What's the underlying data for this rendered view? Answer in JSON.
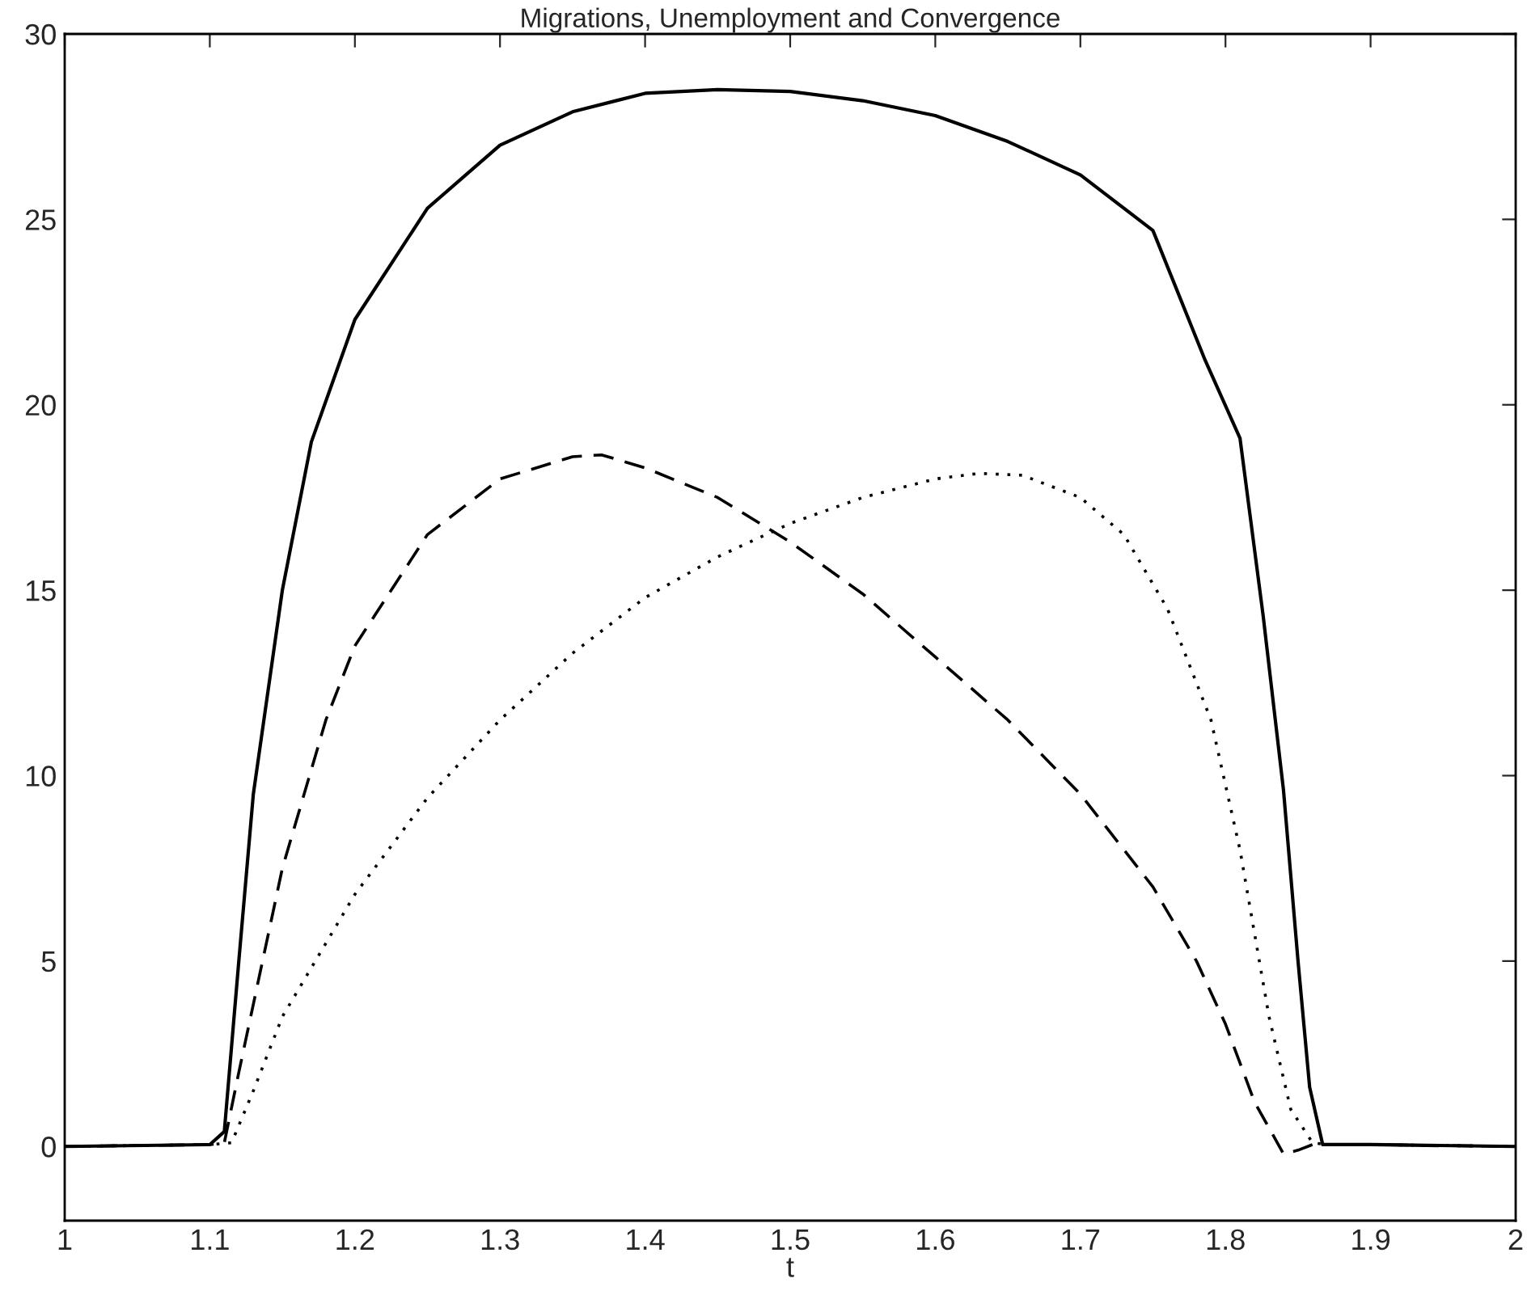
{
  "chart_data": {
    "type": "line",
    "title": "Migrations, Unemployment and Convergence",
    "xlabel": "t",
    "xlim": [
      1,
      2
    ],
    "ylim": [
      -2,
      30
    ],
    "xticks": [
      1,
      1.1,
      1.2,
      1.3,
      1.4,
      1.5,
      1.6,
      1.7,
      1.8,
      1.9,
      2
    ],
    "yticks": [
      0,
      5,
      10,
      15,
      20,
      25,
      30
    ],
    "grid": false,
    "marker": "none",
    "series": [
      {
        "color": "#000000",
        "line_style": "solid",
        "x": [
          1.0,
          1.1,
          1.11,
          1.12,
          1.13,
          1.15,
          1.17,
          1.2,
          1.25,
          1.3,
          1.35,
          1.4,
          1.45,
          1.5,
          1.55,
          1.6,
          1.65,
          1.7,
          1.75,
          1.786,
          1.81,
          1.826,
          1.84,
          1.85,
          1.858,
          1.867,
          1.9,
          2.0
        ],
        "values": [
          0,
          0.05,
          0.4,
          5,
          9.5,
          15,
          19,
          22.3,
          25.3,
          27,
          27.9,
          28.4,
          28.5,
          28.45,
          28.2,
          27.8,
          27.1,
          26.2,
          24.7,
          21.2,
          19.1,
          14.3,
          9.6,
          5,
          1.6,
          0.05,
          0.05,
          0
        ]
      },
      {
        "color": "#000000",
        "line_style": "dashed",
        "x": [
          1.0,
          1.1,
          1.11,
          1.12,
          1.15,
          1.18,
          1.2,
          1.25,
          1.3,
          1.35,
          1.37,
          1.4,
          1.45,
          1.5,
          1.55,
          1.6,
          1.65,
          1.7,
          1.75,
          1.78,
          1.8,
          1.82,
          1.84,
          1.85,
          1.86,
          1.9,
          2.0
        ],
        "values": [
          0,
          0.05,
          0.1,
          2,
          7.5,
          11.5,
          13.5,
          16.5,
          18,
          18.6,
          18.65,
          18.3,
          17.5,
          16.3,
          14.9,
          13.2,
          11.5,
          9.5,
          7,
          5,
          3.3,
          1.2,
          -0.2,
          -0.1,
          0.05,
          0.05,
          0
        ]
      },
      {
        "color": "#000000",
        "line_style": "dotted",
        "x": [
          1.0,
          1.1,
          1.115,
          1.13,
          1.15,
          1.2,
          1.25,
          1.3,
          1.35,
          1.4,
          1.45,
          1.5,
          1.55,
          1.6,
          1.63,
          1.66,
          1.7,
          1.73,
          1.76,
          1.79,
          1.81,
          1.83,
          1.845,
          1.86,
          1.87,
          1.9,
          2.0
        ],
        "values": [
          0,
          0.05,
          0.1,
          1.5,
          3.5,
          6.8,
          9.4,
          11.5,
          13.3,
          14.8,
          15.9,
          16.8,
          17.5,
          18,
          18.15,
          18.1,
          17.5,
          16.5,
          14.5,
          11.5,
          8,
          3.5,
          1,
          0.1,
          0.05,
          0.05,
          0
        ]
      }
    ]
  }
}
